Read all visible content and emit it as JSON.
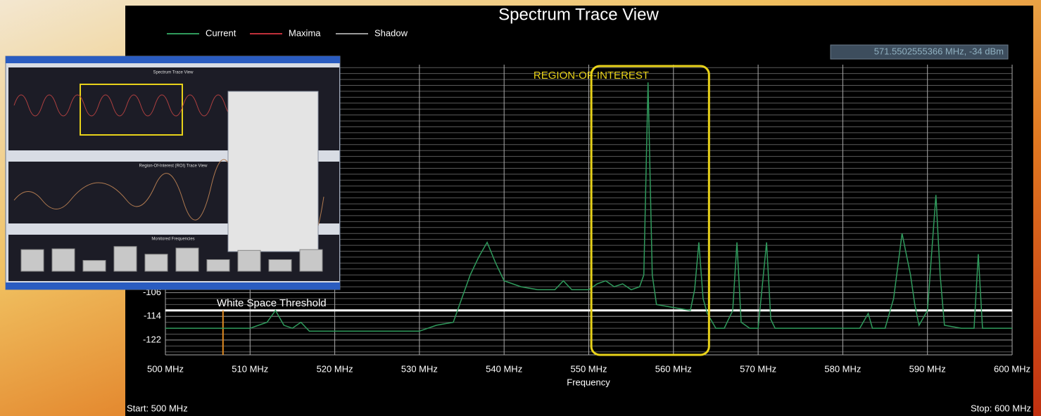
{
  "chart_data": {
    "type": "line",
    "title": "Spectrum Trace View",
    "x_label": "Frequency",
    "xlim": [
      500,
      600
    ],
    "ylim": [
      -127,
      -29
    ],
    "xticks": [
      {
        "value": 500,
        "label": "500 MHz"
      },
      {
        "value": 510,
        "label": "510 MHz"
      },
      {
        "value": 520,
        "label": "520 MHz"
      },
      {
        "value": 530,
        "label": "530 MHz"
      },
      {
        "value": 540,
        "label": "540 MHz"
      },
      {
        "value": 550,
        "label": "550 MHz"
      },
      {
        "value": 560,
        "label": "560 MHz"
      },
      {
        "value": 570,
        "label": "570 MHz"
      },
      {
        "value": 580,
        "label": "580 MHz"
      },
      {
        "value": 590,
        "label": "590 MHz"
      },
      {
        "value": 600,
        "label": "600 MHz"
      }
    ],
    "yticks": [
      -122,
      -114,
      -106
    ],
    "minor_yticks": [
      -126,
      -124,
      -122,
      -120,
      -118,
      -116,
      -114,
      -112,
      -110,
      -108,
      -106,
      -104,
      -102,
      -100,
      -98,
      -96,
      -94,
      -92,
      -90,
      -88,
      -86,
      -84,
      -82,
      -80,
      -78,
      -76,
      -74,
      -72,
      -70,
      -68,
      -66,
      -64,
      -62,
      -60,
      -58,
      -56,
      -54,
      -52,
      -50,
      -48,
      -46,
      -44,
      -42,
      -40,
      -38,
      -36,
      -34,
      -32,
      -30
    ],
    "grid": true,
    "series": [
      {
        "name": "Current",
        "color": "#2f9a5c",
        "x": [
          500,
          505,
          510,
          512,
          513,
          514,
          515,
          516,
          517,
          520,
          525,
          530,
          532,
          534,
          535,
          536,
          537,
          538,
          539,
          540,
          542,
          544,
          546,
          547,
          548,
          550,
          551,
          552,
          553,
          554,
          555,
          556,
          556.5,
          557,
          557.5,
          558,
          560,
          562,
          562.5,
          563,
          563.5,
          564,
          565,
          566,
          567,
          567.5,
          568,
          569,
          570,
          571,
          571.5,
          572,
          575,
          577,
          579,
          580,
          582,
          583,
          583.5,
          585,
          586,
          587,
          588,
          588.5,
          589,
          590,
          591,
          591.5,
          592,
          594,
          595.5,
          596,
          596.5,
          600
        ],
        "values": [
          -118,
          -118,
          -118,
          -116,
          -112,
          -117,
          -118,
          -116,
          -119,
          -119,
          -119,
          -119,
          -117,
          -116,
          -108,
          -100,
          -94,
          -89,
          -96,
          -102,
          -104,
          -105,
          -105,
          -102,
          -105,
          -105,
          -103,
          -102,
          -104,
          -103,
          -105,
          -104,
          -100,
          -35,
          -100,
          -110,
          -111,
          -112,
          -105,
          -89,
          -108,
          -113,
          -118,
          -118,
          -112,
          -89,
          -116,
          -118,
          -118,
          -89,
          -115,
          -118,
          -118,
          -118,
          -118,
          -118,
          -118,
          -113,
          -118,
          -118,
          -108,
          -86,
          -100,
          -110,
          -117,
          -112,
          -73,
          -100,
          -117,
          -118,
          -118,
          -93,
          -118,
          -118
        ]
      },
      {
        "name": "Maxima",
        "color": "#c0303a"
      },
      {
        "name": "Shadow",
        "color": "#9a9a9a"
      }
    ],
    "threshold": {
      "value": -112,
      "label": "White Space Threshold",
      "color": "#ffffff"
    },
    "roi": {
      "x": [
        550.3,
        564.2
      ],
      "label": "REGION-OF-INTEREST",
      "color": "#e8d21a"
    },
    "cursor_x": 506.8,
    "readout": "571.5502555366 MHz,   -34 dBm",
    "start_label": "Start: 500 MHz",
    "stop_label": "Stop: 600 MHz"
  },
  "inset": {
    "panel_titles": [
      "Spectrum Trace View",
      "Region-Of-Interest (ROI) Trace View",
      "Monitored Frequencies"
    ],
    "monitored_levels": [
      28,
      29,
      14,
      32,
      22,
      30,
      15,
      27,
      15,
      28
    ]
  }
}
